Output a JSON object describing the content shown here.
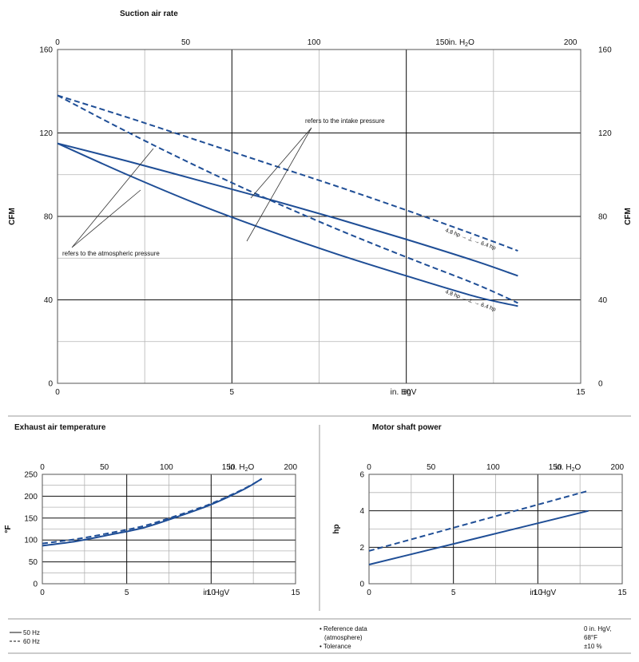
{
  "colors": {
    "series": "#1f4e96",
    "grid_major": "#111111",
    "grid_minor": "#b5b5b5"
  },
  "chart_data": [
    {
      "id": "suction",
      "type": "line",
      "title": "Suction air rate",
      "ylabel_left": "CFM",
      "ylabel_right": "CFM",
      "x_bottom": {
        "label": "in. HgV",
        "ticks": [
          0,
          5,
          10,
          15
        ],
        "range": [
          0,
          15
        ]
      },
      "x_top": {
        "label": "in. H2O",
        "ticks": [
          0,
          50,
          100,
          150,
          200
        ],
        "range": [
          0,
          204
        ]
      },
      "ylim": [
        0,
        160
      ],
      "y_ticks": [
        0,
        40,
        80,
        120,
        160
      ],
      "series": [
        {
          "style": "solid",
          "x": [
            0,
            2,
            4,
            6,
            8,
            10,
            12,
            13.2
          ],
          "y": [
            115,
            106.5,
            97.5,
            88.5,
            79,
            69,
            58.5,
            51.5
          ]
        },
        {
          "style": "solid",
          "x": [
            0,
            2,
            4,
            6,
            8,
            10,
            12,
            13.2
          ],
          "y": [
            115,
            100,
            86,
            73.5,
            62,
            51.5,
            41.5,
            37
          ]
        },
        {
          "style": "dashed",
          "x": [
            0,
            2,
            4,
            6,
            8,
            10,
            12,
            13.2
          ],
          "y": [
            138,
            127.5,
            116.5,
            105.5,
            94.5,
            83,
            71,
            63.5
          ]
        },
        {
          "style": "dashed",
          "x": [
            0,
            2,
            4,
            6,
            8,
            10,
            12,
            13.2
          ],
          "y": [
            138,
            120.5,
            104,
            88.5,
            74,
            60.5,
            47.5,
            38.5
          ]
        }
      ],
      "annotations": {
        "intake": "refers to the intake pressure",
        "atmospheric": "refers to the atmospheric pressure",
        "power_label": "4.8 hp → ⊥ → 6.4 hp"
      }
    },
    {
      "id": "temperature",
      "type": "line",
      "title": "Exhaust air temperature",
      "ylabel": "°F",
      "x_bottom": {
        "label": "in. HgV",
        "ticks": [
          0,
          5,
          10,
          15
        ],
        "range": [
          0,
          15
        ]
      },
      "x_top": {
        "label": "in. H2O",
        "ticks": [
          0,
          50,
          100,
          150,
          200
        ],
        "range": [
          0,
          204
        ]
      },
      "ylim": [
        0,
        250
      ],
      "y_ticks": [
        0,
        50,
        100,
        150,
        200,
        250
      ],
      "series": [
        {
          "style": "solid",
          "x": [
            0,
            2,
            4,
            6,
            8,
            10,
            12,
            13
          ],
          "y": [
            87,
            97,
            112,
            128,
            153,
            181,
            217,
            240
          ]
        },
        {
          "style": "dashed",
          "x": [
            0,
            2,
            4,
            6,
            8,
            10,
            12,
            13
          ],
          "y": [
            92,
            102,
            116,
            132,
            156,
            183,
            218,
            240
          ]
        }
      ]
    },
    {
      "id": "power",
      "type": "line",
      "title": "Motor shaft power",
      "ylabel": "hp",
      "x_bottom": {
        "label": "in. HgV",
        "ticks": [
          0,
          5,
          10,
          15
        ],
        "range": [
          0,
          15
        ]
      },
      "x_top": {
        "label": "in. H2O",
        "ticks": [
          0,
          50,
          100,
          150,
          200
        ],
        "range": [
          0,
          204
        ]
      },
      "ylim": [
        0,
        6
      ],
      "y_ticks": [
        0,
        2,
        4,
        6
      ],
      "series": [
        {
          "style": "solid",
          "x": [
            0,
            13
          ],
          "y": [
            1.05,
            4.0
          ]
        },
        {
          "style": "dashed",
          "x": [
            0,
            13
          ],
          "y": [
            1.8,
            5.1
          ]
        }
      ]
    }
  ],
  "footer": {
    "legend": [
      {
        "style": "solid",
        "label": "50 Hz"
      },
      {
        "style": "dashed",
        "label": "60 Hz"
      }
    ],
    "notes": [
      "• Reference data",
      "(atmosphere)",
      "• Tolerance"
    ],
    "values": [
      "0 in. HgV,",
      "68°F",
      "±10 %"
    ]
  }
}
